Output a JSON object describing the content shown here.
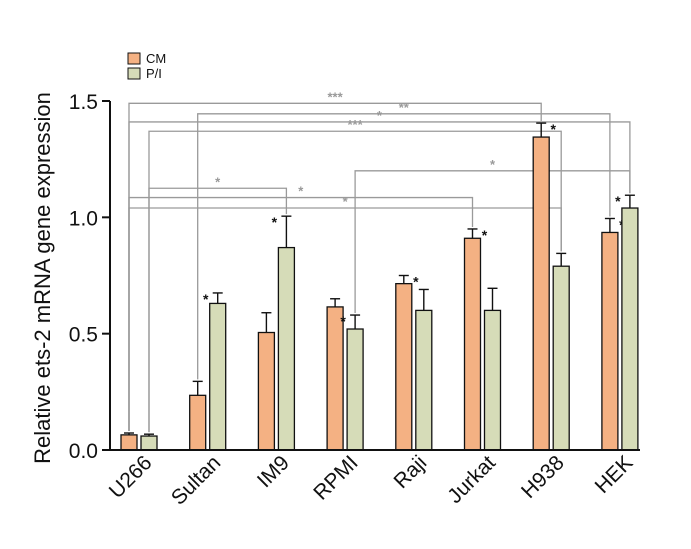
{
  "chart_data": {
    "type": "bar",
    "title": "",
    "xlabel": "",
    "ylabel": "Relative ets-2 mRNA gene  expression",
    "ylim": [
      0,
      1.5
    ],
    "yticks": [
      "0.0",
      "0.5",
      "1.0",
      "1.5"
    ],
    "categories": [
      "U266",
      "Sultan",
      "IM9",
      "RPMI",
      "Raji",
      "Jurkat",
      "H938",
      "HEK"
    ],
    "legend_position": "top-left",
    "grid": false,
    "series": [
      {
        "name": "CM",
        "color": "#F4B183",
        "values": [
          0.065,
          0.235,
          0.505,
          0.615,
          0.715,
          0.91,
          1.345,
          0.935
        ],
        "errors": [
          0.008,
          0.06,
          0.085,
          0.035,
          0.035,
          0.04,
          0.06,
          0.06
        ],
        "stars": [
          "",
          "",
          "",
          "",
          "*",
          "*",
          "*",
          "*"
        ]
      },
      {
        "name": "P/I",
        "color": "#D6DCB8",
        "values": [
          0.06,
          0.63,
          0.87,
          0.52,
          0.6,
          0.6,
          0.79,
          1.04
        ],
        "errors": [
          0.008,
          0.045,
          0.135,
          0.06,
          0.09,
          0.095,
          0.055,
          0.055
        ],
        "stars": [
          "",
          "*",
          "*",
          "*",
          "",
          "",
          "",
          "*"
        ]
      }
    ],
    "brackets": [
      {
        "label": "***",
        "from": [
          0,
          0
        ],
        "to": [
          6,
          0
        ],
        "level": 1.49
      },
      {
        "label": "**",
        "from": [
          1,
          0
        ],
        "to": [
          7,
          0
        ],
        "level": 1.445
      },
      {
        "label": "*",
        "from": [
          0,
          0
        ],
        "to": [
          7,
          1
        ],
        "level": 1.41
      },
      {
        "label": "***",
        "from": [
          0,
          1
        ],
        "to": [
          6,
          1
        ],
        "level": 1.37
      },
      {
        "label": "*",
        "from": [
          3,
          1
        ],
        "to": [
          7,
          1
        ],
        "level": 1.2
      },
      {
        "label": "*",
        "from": [
          0,
          1
        ],
        "to": [
          2,
          1
        ],
        "level": 1.125
      },
      {
        "label": "*",
        "from": [
          0,
          0
        ],
        "to": [
          5,
          0
        ],
        "level": 1.085
      },
      {
        "label": "*",
        "from": [
          0,
          0
        ],
        "to": [
          6,
          1
        ],
        "level": 1.04
      }
    ]
  }
}
